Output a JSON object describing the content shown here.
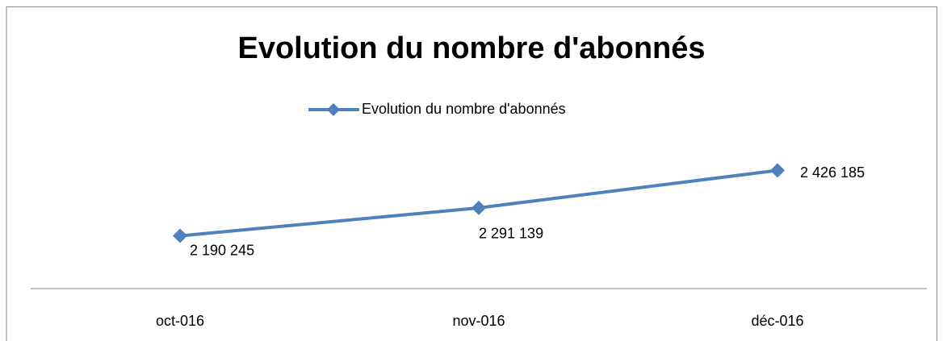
{
  "chart_data": {
    "type": "line",
    "title": "Evolution  du nombre d'abonnés",
    "categories": [
      "oct-016",
      "nov-016",
      "déc-016"
    ],
    "series": [
      {
        "name": "Evolution  du nombre d'abonnés",
        "color": "#4f81bd",
        "values": [
          2190245,
          2291139,
          2426185
        ],
        "value_labels": [
          "2 190 245",
          "2 291 139",
          "2 426 185"
        ]
      }
    ],
    "ylim": [
      2000000,
      2500000
    ],
    "legend": "top"
  }
}
